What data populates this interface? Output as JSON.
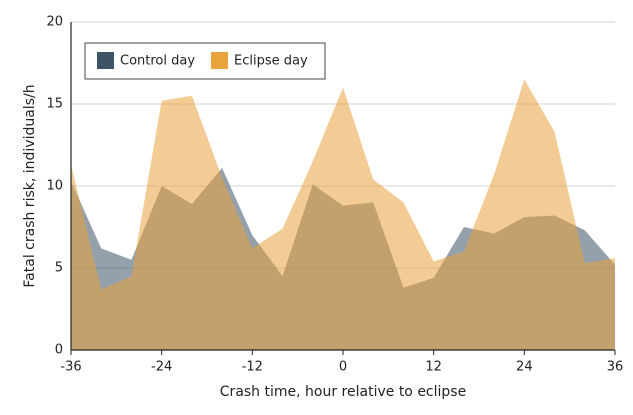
{
  "chart_data": {
    "type": "area",
    "xlabel": "Crash time, hour relative to eclipse",
    "ylabel": "Fatal crash risk, individuals/h",
    "x": [
      -36,
      -32,
      -28,
      -24,
      -20,
      -16,
      -12,
      -8,
      -4,
      0,
      4,
      8,
      12,
      16,
      20,
      24,
      28,
      32,
      36
    ],
    "series": [
      {
        "name": "Control day",
        "color": "#3d5467",
        "values": [
          10.3,
          6.2,
          5.5,
          10.0,
          8.9,
          11.1,
          7.0,
          4.5,
          10.1,
          8.8,
          9.0,
          3.8,
          4.4,
          7.5,
          7.1,
          8.1,
          8.2,
          7.3,
          5.2
        ]
      },
      {
        "name": "Eclipse day",
        "color": "#e8a33c",
        "values": [
          11.3,
          3.7,
          4.5,
          15.2,
          15.5,
          10.5,
          6.2,
          7.4,
          11.5,
          16.0,
          10.4,
          9.0,
          5.4,
          6.0,
          10.7,
          16.5,
          13.3,
          5.3,
          5.6
        ]
      }
    ],
    "xlim": [
      -36,
      36
    ],
    "xticks": [
      -36,
      -24,
      -12,
      0,
      12,
      24,
      36
    ],
    "ylim": [
      0,
      20
    ],
    "yticks": [
      0,
      5,
      10,
      15,
      20
    ],
    "grid": true,
    "legend": "upper left"
  }
}
